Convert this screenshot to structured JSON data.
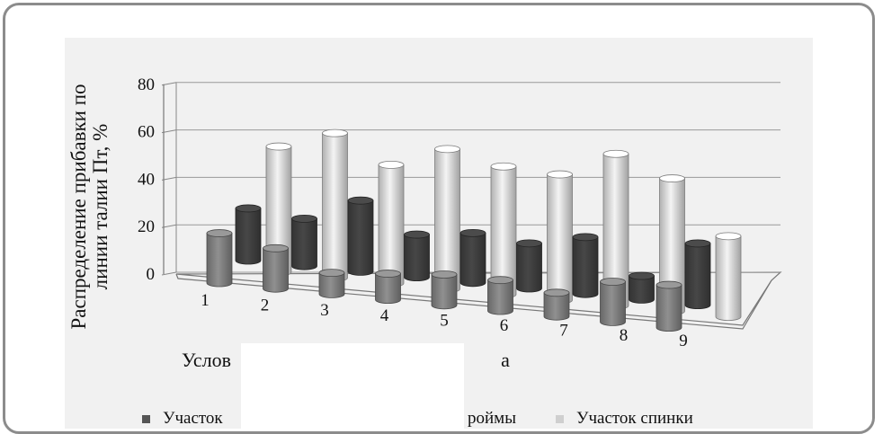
{
  "chart_data": {
    "type": "bar",
    "style": "3d-cylinder",
    "categories": [
      "1",
      "2",
      "3",
      "4",
      "5",
      "6",
      "7",
      "8",
      "9"
    ],
    "ylabel": "Распределение прибавки по линии талии Пт, %",
    "xlabel": "Услов",
    "xlabel_tail": "а",
    "ylim": [
      0,
      80
    ],
    "yticks": [
      "0",
      "20",
      "40",
      "60",
      "80"
    ],
    "grid": true,
    "legend_position": "bottom",
    "series": [
      {
        "name": "Участок",
        "color": "#7a7a7a",
        "values": [
          21,
          17,
          9,
          11,
          13,
          13,
          10,
          17,
          18
        ]
      },
      {
        "name": "",
        "color": "#3c3c3c",
        "values": [
          22,
          20,
          30,
          18,
          21,
          19,
          24,
          10,
          26
        ]
      },
      {
        "name": "Участок спинки",
        "color": "#cfcfcf",
        "values": [
          53,
          61,
          50,
          59,
          54,
          53,
          64,
          56,
          34
        ]
      }
    ],
    "legend_fragment": "роймы"
  }
}
